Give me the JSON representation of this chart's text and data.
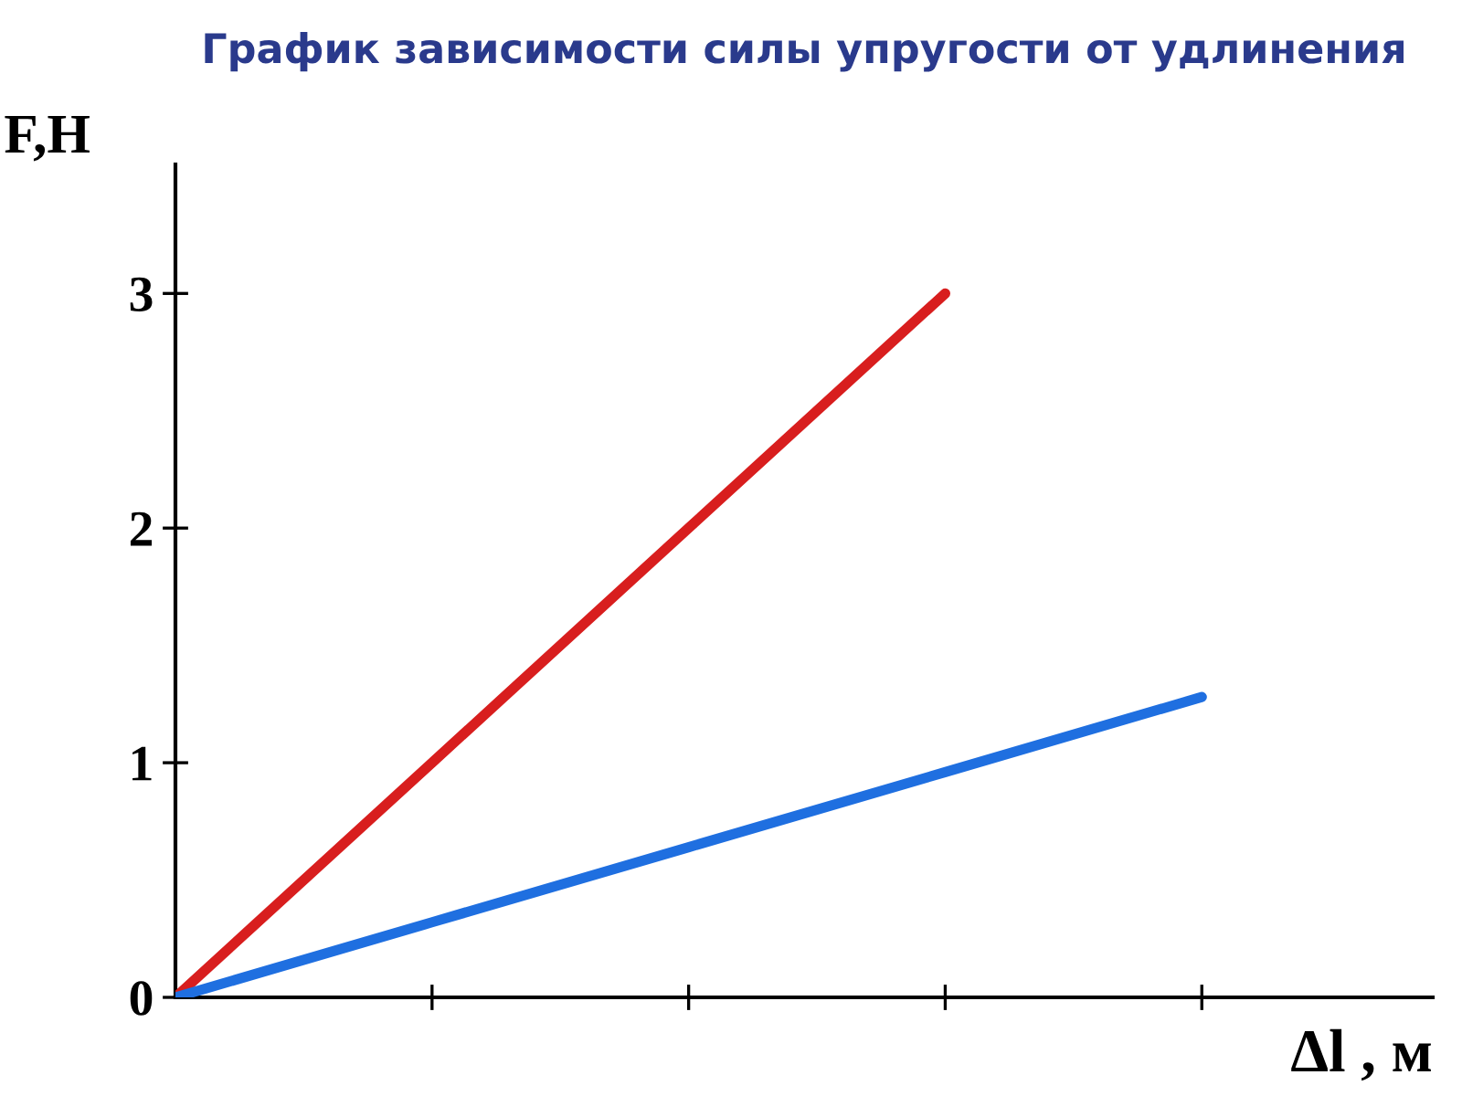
{
  "chart_data": {
    "type": "line",
    "title": "График зависимости силы упругости от удлинения",
    "xlabel": "Δl , м",
    "ylabel": "F,Н",
    "categories": [
      null,
      null,
      null,
      null,
      null
    ],
    "ylim": [
      0,
      3.55
    ],
    "yticks": [
      0,
      1,
      2,
      3
    ],
    "grid": false,
    "legend": false,
    "marker": "none",
    "series": [
      {
        "color": "#d81e1e",
        "values": [
          0,
          1,
          2,
          3,
          null
        ]
      },
      {
        "color": "#1f6fe0",
        "values": [
          0,
          0.32,
          0.64,
          0.96,
          1.28
        ]
      }
    ]
  }
}
